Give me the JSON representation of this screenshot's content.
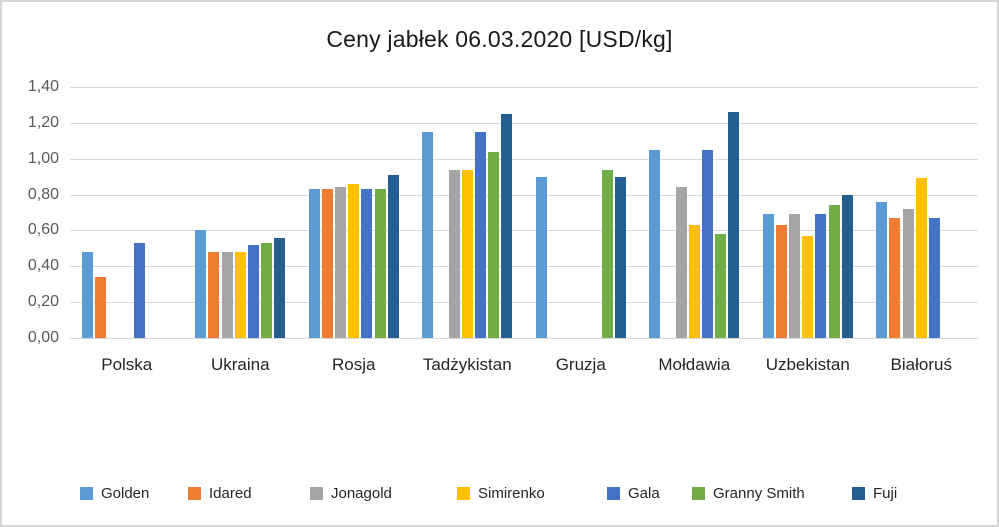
{
  "chart_data": {
    "type": "bar",
    "title": "Ceny jabłek 06.03.2020 [USD/kg]",
    "categories": [
      "Polska",
      "Ukraina",
      "Rosja",
      "Tadżykistan",
      "Gruzja",
      "Mołdawia",
      "Uzbekistan",
      "Białoruś"
    ],
    "series": [
      {
        "name": "Golden",
        "color": "#5B9BD5",
        "values": [
          0.48,
          0.6,
          0.83,
          1.15,
          0.9,
          1.05,
          0.69,
          0.76
        ]
      },
      {
        "name": "Idared",
        "color": "#ED7D31",
        "values": [
          0.34,
          0.48,
          0.83,
          null,
          null,
          null,
          0.63,
          0.67
        ]
      },
      {
        "name": "Jonagold",
        "color": "#A5A5A5",
        "values": [
          null,
          0.48,
          0.84,
          0.94,
          null,
          0.84,
          0.69,
          0.72
        ]
      },
      {
        "name": "Simirenko",
        "color": "#FFC000",
        "values": [
          null,
          0.48,
          0.86,
          0.94,
          null,
          0.63,
          0.57,
          0.89
        ]
      },
      {
        "name": "Gala",
        "color": "#4472C4",
        "values": [
          0.53,
          0.52,
          0.83,
          1.15,
          null,
          1.05,
          0.69,
          0.67
        ]
      },
      {
        "name": "Granny Smith",
        "color": "#70AD47",
        "values": [
          null,
          0.53,
          0.83,
          1.04,
          0.94,
          0.58,
          0.74,
          null
        ]
      },
      {
        "name": "Fuji",
        "color": "#255E91",
        "values": [
          null,
          0.56,
          0.91,
          1.25,
          0.9,
          1.26,
          0.8,
          null
        ]
      }
    ],
    "ylabel": "",
    "xlabel": "",
    "ylim": [
      0,
      1.4
    ],
    "y_tick_step": 0.2,
    "y_tick_labels": [
      "1,40",
      "1,20",
      "1,00",
      "0,80",
      "0,60",
      "0,40",
      "0,20",
      "0,00"
    ],
    "decimal_separator": ",",
    "grid": true,
    "legend_position": "bottom"
  }
}
